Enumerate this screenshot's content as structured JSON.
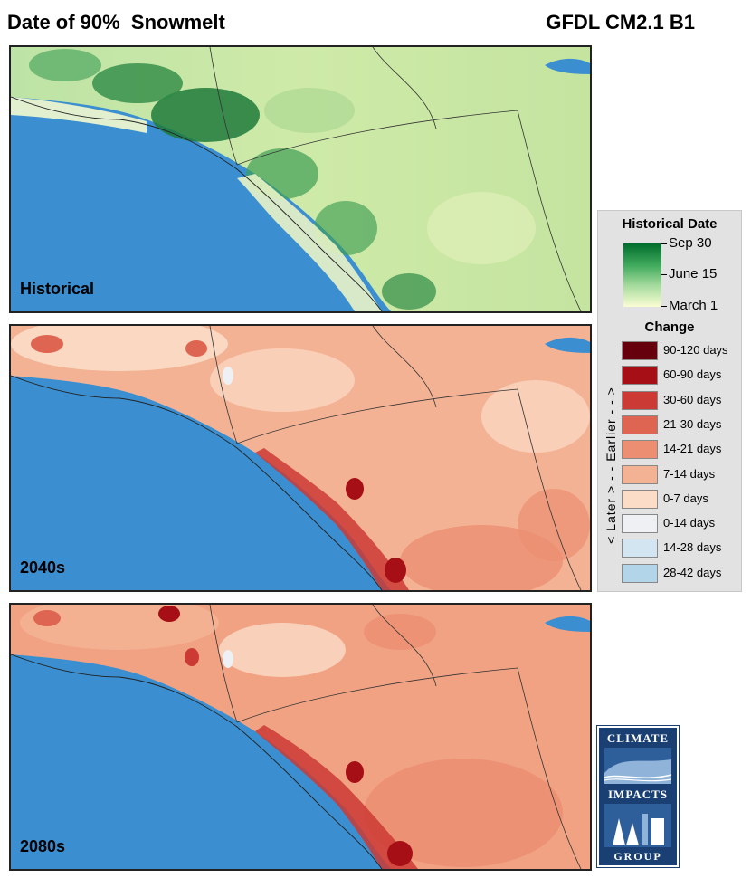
{
  "title": "Date of 90%  Snowmelt",
  "model": "GFDL CM2.1 B1",
  "panels": [
    {
      "label": "Historical",
      "type": "historical"
    },
    {
      "label": "2040s",
      "type": "change"
    },
    {
      "label": "2080s",
      "type": "change"
    }
  ],
  "legend": {
    "historical_heading": "Historical Date",
    "gradient_labels": [
      "Sep 30",
      "June 15",
      "March 1"
    ],
    "gradient_colors": [
      "#006d2c",
      "#41ab5d",
      "#a1d99b",
      "#fbfdd4"
    ],
    "change_heading": "Change",
    "axis_text": "< Later > - - Earlier - - >",
    "items": [
      {
        "label": "90-120 days",
        "color": "#67000d"
      },
      {
        "label": "60-90 days",
        "color": "#a50f15"
      },
      {
        "label": "30-60 days",
        "color": "#cb3a35"
      },
      {
        "label": "21-30 days",
        "color": "#de6552"
      },
      {
        "label": "14-21 days",
        "color": "#ec8e72"
      },
      {
        "label": "7-14 days",
        "color": "#f4b294"
      },
      {
        "label": "0-7 days",
        "color": "#fbdcc7"
      },
      {
        "label": "0-14 days",
        "color": "#eef0f3"
      },
      {
        "label": "14-28 days",
        "color": "#d3e5f1"
      },
      {
        "label": "28-42 days",
        "color": "#b3d5ea"
      }
    ]
  },
  "colors": {
    "ocean": "#3b8fd0",
    "border": "#222222"
  },
  "logo": {
    "top": "CLIMATE",
    "middle": "IMPACTS",
    "bottom": "GROUP"
  }
}
